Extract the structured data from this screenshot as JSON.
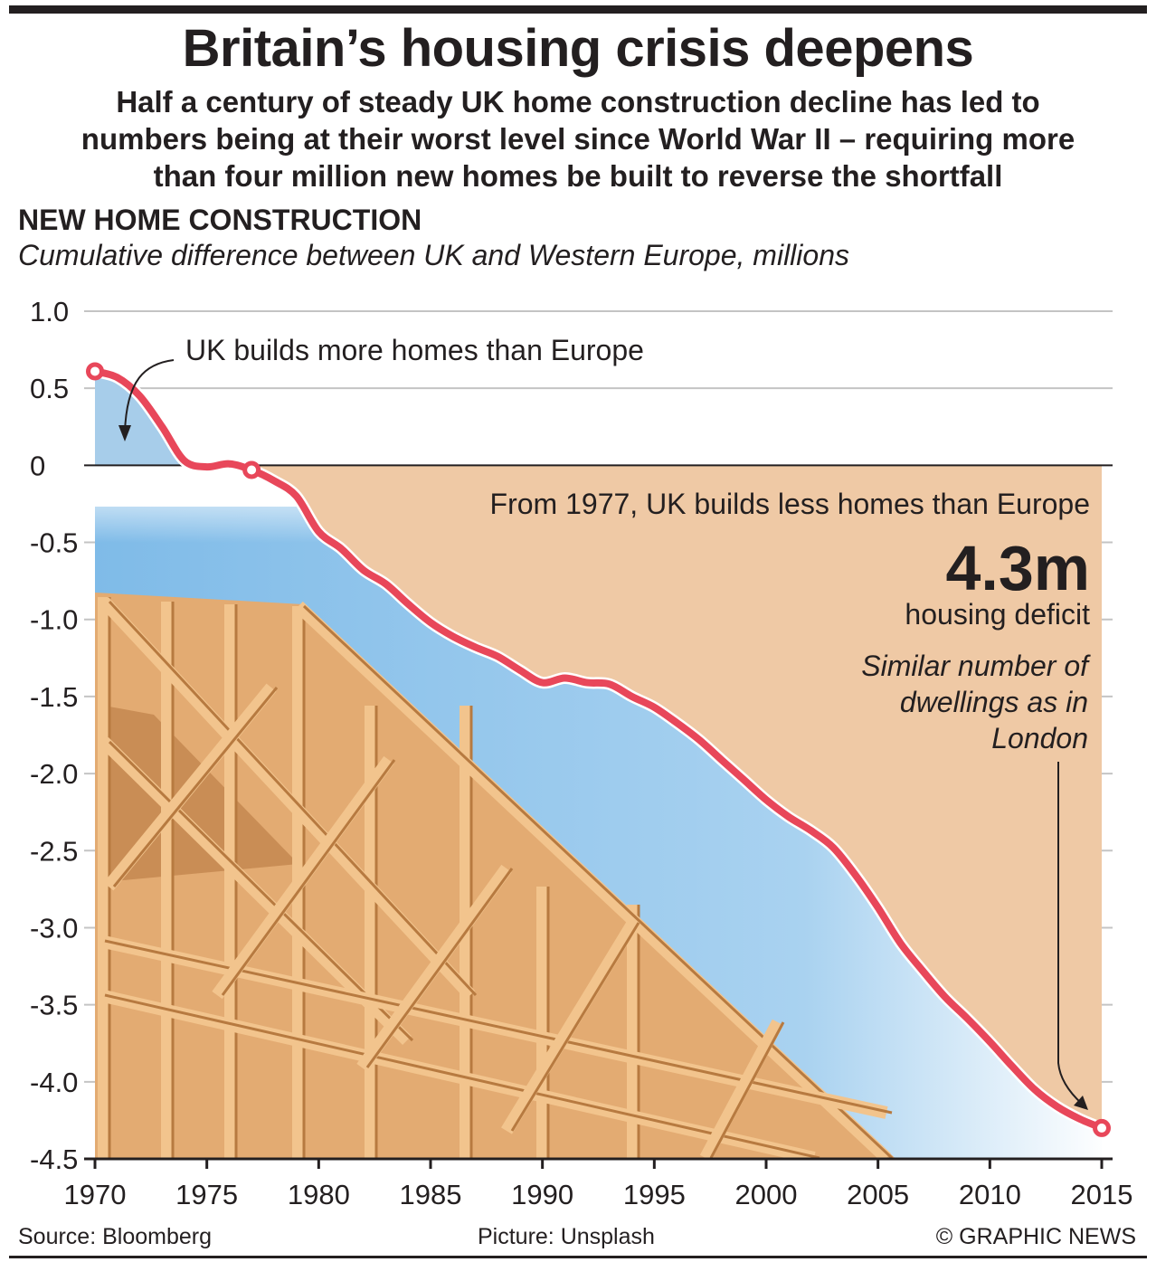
{
  "title": "Britain’s housing crisis deepens",
  "subtitle": "Half a century of steady UK home construction decline has led to numbers being at their worst level since World War II – requiring more than four million new homes be built to reverse the shortfall",
  "section_title": "NEW HOME CONSTRUCTION",
  "section_subtitle": "Cumulative difference between UK and Western Europe, millions",
  "footer": {
    "source": "Source: Bloomberg",
    "picture": "Picture: Unsplash",
    "credit": "© GRAPHIC NEWS"
  },
  "colors": {
    "line": "#e8475a",
    "positive_area": "#a7cdea",
    "negative_area": "#efc9a5",
    "grid": "#c4c4c4",
    "sky": "#8cc3ec",
    "wood": "#e3ab72"
  },
  "annotations": {
    "positive": "UK builds more homes than Europe",
    "negative": "From 1977, UK builds less homes than Europe",
    "big_number": "4.3m",
    "big_number_label": "housing deficit",
    "note_line1": "Similar number of",
    "note_line2": "dwellings as in",
    "note_line3": "London"
  },
  "chart_data": {
    "type": "area",
    "x": [
      1970,
      1971,
      1972,
      1973,
      1974,
      1975,
      1976,
      1977,
      1978,
      1979,
      1980,
      1981,
      1982,
      1983,
      1984,
      1985,
      1986,
      1987,
      1988,
      1989,
      1990,
      1991,
      1992,
      1993,
      1994,
      1995,
      1996,
      1997,
      1998,
      1999,
      2000,
      2001,
      2002,
      2003,
      2004,
      2005,
      2006,
      2007,
      2008,
      2009,
      2010,
      2011,
      2012,
      2013,
      2014,
      2015
    ],
    "series": [
      {
        "values": [
          0.61,
          0.57,
          0.45,
          0.25,
          0.03,
          -0.01,
          0.01,
          -0.03,
          -0.1,
          -0.2,
          -0.43,
          -0.54,
          -0.68,
          -0.77,
          -0.9,
          -1.02,
          -1.11,
          -1.18,
          -1.24,
          -1.33,
          -1.41,
          -1.38,
          -1.41,
          -1.42,
          -1.5,
          -1.57,
          -1.67,
          -1.78,
          -1.91,
          -2.04,
          -2.17,
          -2.28,
          -2.37,
          -2.48,
          -2.66,
          -2.87,
          -3.1,
          -3.28,
          -3.45,
          -3.59,
          -3.74,
          -3.9,
          -4.05,
          -4.16,
          -4.24,
          -4.3
        ]
      }
    ],
    "xlim": [
      1970,
      2015
    ],
    "ylim": [
      -4.5,
      1.0
    ],
    "xticks": [
      "1970",
      "1975",
      "1980",
      "1985",
      "1990",
      "1995",
      "2000",
      "2005",
      "2010",
      "2015"
    ],
    "yticks": [
      "1.0",
      "0.5",
      "0",
      "-0.5",
      "-1.0",
      "-1.5",
      "-2.0",
      "-2.5",
      "-3.0",
      "-3.5",
      "-4.0",
      "-4.5"
    ],
    "grid": true,
    "highlighted_points": [
      1970,
      1977,
      2015
    ]
  }
}
